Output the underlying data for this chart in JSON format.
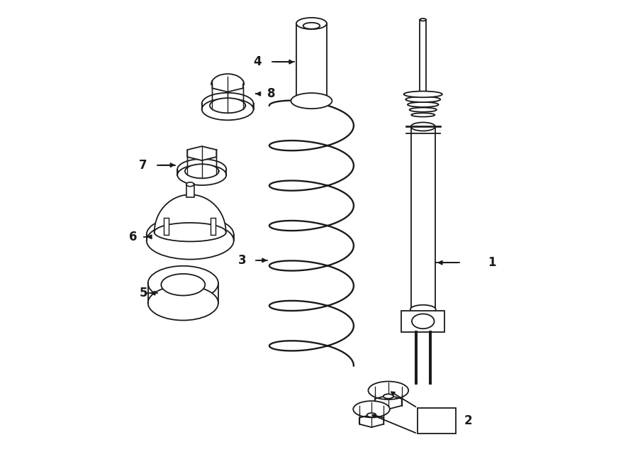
{
  "bg_color": "#ffffff",
  "line_color": "#1a1a1a",
  "lw": 1.3,
  "fig_w": 9.0,
  "fig_h": 6.61,
  "dpi": 100,
  "label_fontsize": 12
}
